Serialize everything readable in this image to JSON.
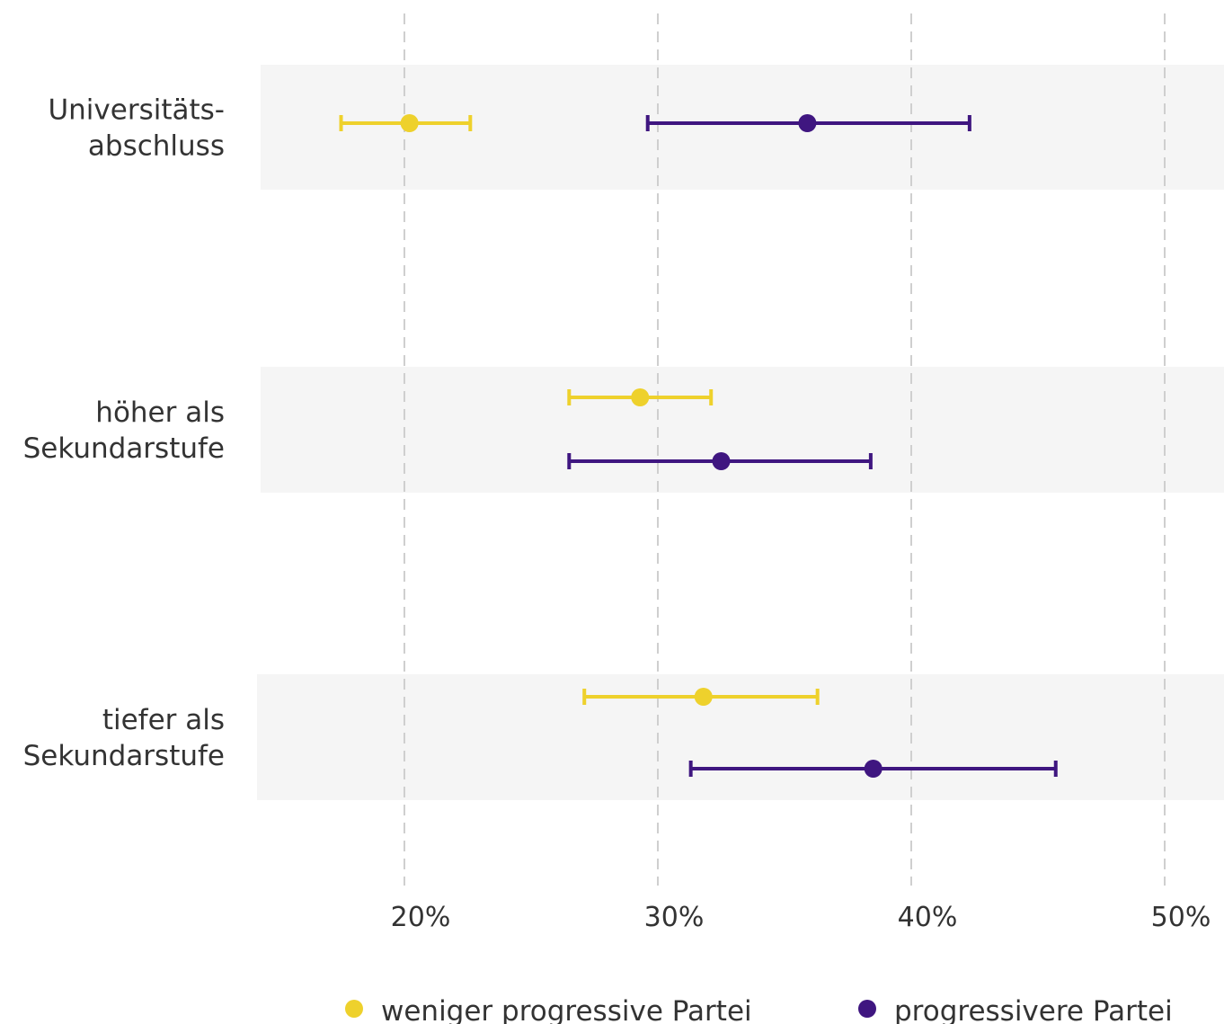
{
  "chart_data": {
    "type": "dot-errorbar",
    "title": "",
    "xlabel": "",
    "ylabel": "",
    "x_ticks": [
      {
        "value": 20,
        "label": "20%"
      },
      {
        "value": 30,
        "label": "30%"
      },
      {
        "value": 40,
        "label": "40%"
      },
      {
        "value": 50,
        "label": "50%"
      }
    ],
    "xlim": [
      14.3,
      52.3
    ],
    "grid": "vertical dashed",
    "legend_position": "bottom",
    "categories": [
      {
        "label_lines": [
          "Universitäts-",
          "abschluss"
        ]
      },
      {
        "label_lines": [
          "höher als",
          "Sekundarstufe"
        ]
      },
      {
        "label_lines": [
          "tiefer als",
          "Sekundarstufe"
        ]
      }
    ],
    "series": [
      {
        "name": "weniger progressive Partei",
        "color": "#eed12c",
        "points": [
          {
            "category_index": 0,
            "value": 20.2,
            "ci_low": 17.5,
            "ci_high": 22.6
          },
          {
            "category_index": 1,
            "value": 29.3,
            "ci_low": 26.5,
            "ci_high": 32.1
          },
          {
            "category_index": 2,
            "value": 31.8,
            "ci_low": 27.1,
            "ci_high": 36.3
          }
        ]
      },
      {
        "name": "progressivere Partei",
        "color": "#3f1680",
        "points": [
          {
            "category_index": 0,
            "value": 35.9,
            "ci_low": 29.6,
            "ci_high": 42.3
          },
          {
            "category_index": 1,
            "value": 32.5,
            "ci_low": 26.5,
            "ci_high": 38.4
          },
          {
            "category_index": 2,
            "value": 38.5,
            "ci_low": 31.3,
            "ci_high": 45.7
          }
        ]
      }
    ]
  }
}
